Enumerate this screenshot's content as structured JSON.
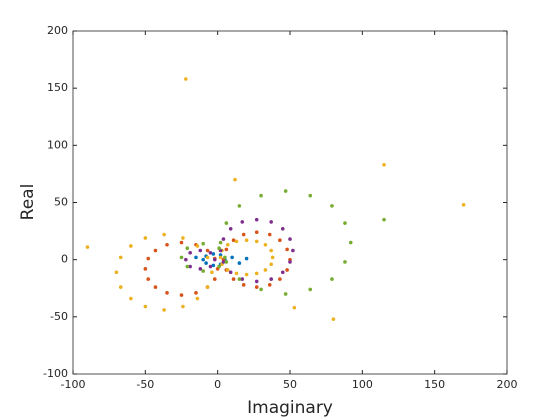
{
  "chart_data": {
    "type": "scatter",
    "xlabel": "Imaginary",
    "ylabel": "Real",
    "xlim": [
      -100,
      200
    ],
    "ylim": [
      -100,
      200
    ],
    "xticks": [
      -100,
      -50,
      0,
      50,
      100,
      150,
      200
    ],
    "yticks": [
      -100,
      -50,
      0,
      50,
      100,
      150,
      200
    ],
    "box": true,
    "series": [
      {
        "color": "#0072BD",
        "x": [
          5,
          2,
          -3,
          -8,
          -10,
          -8,
          -3,
          2,
          10,
          15,
          20,
          -15
        ],
        "y": [
          0,
          4,
          5,
          3,
          0,
          -3,
          -5,
          -4,
          2,
          -3,
          1,
          2
        ]
      },
      {
        "color": "#D95319",
        "x": [
          0,
          -2,
          -7,
          -15,
          -25,
          -35,
          -43,
          -48,
          -50,
          -48,
          -43,
          -35,
          -25,
          -15,
          -7,
          -2,
          50,
          48,
          43,
          36,
          27,
          18,
          11,
          6,
          4,
          6,
          11,
          18,
          27,
          36,
          43,
          48
        ],
        "y": [
          -8,
          1,
          8,
          13,
          15,
          13,
          8,
          1,
          -8,
          -17,
          -24,
          -29,
          -31,
          -29,
          -24,
          -17,
          0,
          9,
          17,
          22,
          24,
          22,
          17,
          9,
          0,
          -9,
          -17,
          -22,
          -24,
          -22,
          -17,
          -9
        ]
      },
      {
        "color": "#EDB120",
        "x": [
          -4,
          -7,
          -14,
          -24,
          -37,
          -50,
          -60,
          -67,
          -70,
          -67,
          -60,
          -50,
          -37,
          -24,
          -14,
          -7,
          38,
          37,
          33,
          27,
          20,
          13,
          7,
          3,
          2,
          3,
          7,
          13,
          20,
          27,
          33,
          37,
          -22,
          -90,
          115,
          170,
          80,
          53,
          12
        ],
        "y": [
          -11,
          2,
          12,
          19,
          22,
          19,
          12,
          2,
          -11,
          -24,
          -34,
          -41,
          -44,
          -41,
          -34,
          -24,
          2,
          8,
          13,
          16,
          17,
          16,
          13,
          8,
          2,
          -4,
          -9,
          -12,
          -13,
          -12,
          -9,
          -4,
          158,
          11,
          83,
          48,
          -52,
          -42,
          70
        ]
      },
      {
        "color": "#7E2F8E",
        "x": [
          52,
          50,
          45,
          37,
          27,
          17,
          9,
          4,
          2,
          4,
          9,
          17,
          27,
          37,
          45,
          50,
          -2,
          -5,
          -12,
          -19,
          -22,
          -19,
          -12,
          -5
        ],
        "y": [
          8,
          18,
          27,
          33,
          35,
          33,
          27,
          18,
          8,
          -2,
          -11,
          -17,
          -19,
          -17,
          -11,
          -2,
          0,
          6,
          8,
          6,
          0,
          -6,
          -8,
          -6
        ]
      },
      {
        "color": "#77AC30",
        "x": [
          92,
          88,
          79,
          64,
          47,
          30,
          15,
          6,
          2,
          6,
          15,
          30,
          47,
          64,
          79,
          88,
          5,
          1,
          -10,
          -21,
          -25,
          -21,
          -10,
          1,
          115
        ],
        "y": [
          15,
          32,
          47,
          56,
          60,
          56,
          47,
          32,
          15,
          -2,
          -17,
          -26,
          -30,
          -26,
          -17,
          -2,
          2,
          10,
          14,
          10,
          2,
          -6,
          -10,
          -6,
          35
        ]
      }
    ]
  }
}
